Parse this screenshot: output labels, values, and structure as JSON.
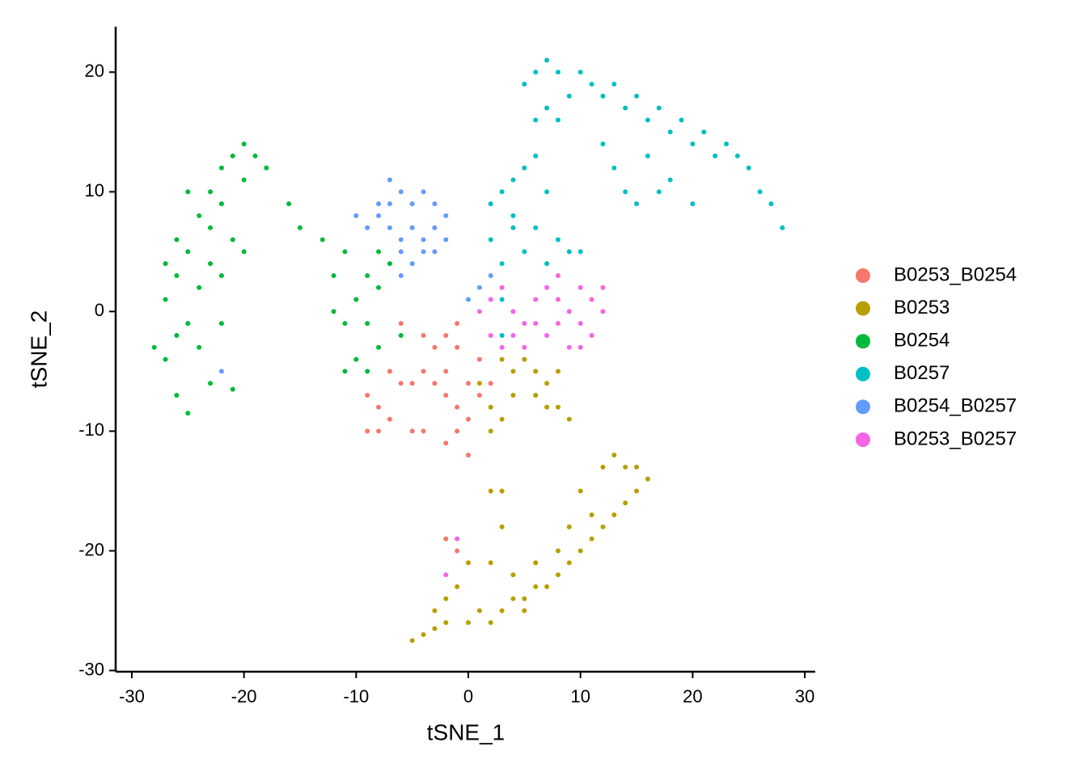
{
  "chart_data": {
    "type": "scatter",
    "x_label": "tSNE_1",
    "y_label": "tSNE_2",
    "xlim": [
      -31.44,
      30.93
    ],
    "ylim": [
      -30.1,
      23.8
    ],
    "xticks": [
      -30,
      -20,
      -10,
      0,
      10,
      20,
      30
    ],
    "yticks": [
      -30,
      -20,
      -10,
      0,
      10,
      20
    ],
    "grid": false,
    "legend": "right",
    "series": [
      {
        "name": "B0253_B0254",
        "color": "#F8766D",
        "x": [
          -9,
          -8,
          -9,
          -8,
          -7,
          -6,
          -7,
          -5,
          -4,
          -5,
          -4,
          -3,
          -2,
          -1,
          -2,
          -3,
          -2,
          -1,
          0,
          1,
          1,
          2,
          0,
          -1,
          -2,
          0,
          -6,
          -4,
          -1,
          -2,
          -1
        ],
        "values": [
          -7,
          -8,
          -10,
          -10,
          -9,
          -6,
          -5,
          -6,
          -5,
          -10,
          -10,
          -3,
          -2,
          -3,
          -5,
          -6,
          -7,
          -8,
          -6,
          -4,
          -7,
          -6,
          -9,
          -10,
          -11,
          -12,
          -1,
          -2,
          -1,
          -19,
          -20
        ]
      },
      {
        "name": "B0253",
        "color": "#B79F00",
        "x": [
          -5,
          -4,
          -3,
          -2,
          0,
          1,
          2,
          3,
          4,
          5,
          6,
          7,
          8,
          9,
          10,
          11,
          12,
          13,
          14,
          15,
          16,
          15,
          14,
          13,
          12,
          10,
          11,
          9,
          8,
          6,
          4,
          2,
          0,
          -1,
          -2,
          3,
          3,
          2,
          5,
          -3,
          1,
          2,
          3,
          2,
          4,
          5,
          6,
          7,
          8,
          8,
          9,
          7,
          6,
          4,
          3
        ],
        "values": [
          -27.5,
          -27,
          -26.5,
          -26,
          -26,
          -25,
          -26,
          -25,
          -24,
          -24,
          -23,
          -23,
          -22,
          -21,
          -20,
          -19,
          -18,
          -17,
          -16,
          -15,
          -14,
          -13,
          -13,
          -12,
          -13,
          -15,
          -17,
          -18,
          -20,
          -21,
          -22,
          -21,
          -21,
          -23,
          -24,
          -18,
          -15,
          -15,
          -25,
          -25,
          -6,
          -8,
          -9,
          -10,
          -7,
          -4,
          -5,
          -6,
          -5,
          -8,
          -9,
          -8,
          -7,
          -5,
          -4
        ]
      },
      {
        "name": "B0254",
        "color": "#00BA38",
        "x": [
          -27,
          -26,
          -25,
          -26,
          -27,
          -26,
          -25,
          -26,
          -24,
          -23,
          -22,
          -21,
          -20,
          -19,
          -18,
          -20,
          -22,
          -21,
          -23,
          -24,
          -22,
          -24,
          -23,
          -21,
          -25,
          -28,
          -27,
          -25,
          -23,
          -20,
          -22,
          -16,
          -15,
          -13,
          -11,
          -12,
          -10,
          -11,
          -9,
          -8,
          -7,
          -8,
          -9,
          -10,
          -9,
          -11,
          -8,
          -6,
          -12
        ],
        "values": [
          -4,
          -7,
          -8.5,
          -2,
          1,
          3,
          5,
          6,
          8,
          10,
          12,
          13,
          14,
          13,
          12,
          11,
          9,
          6,
          4,
          2,
          -1,
          -3,
          -6,
          -6.5,
          -1,
          -3,
          4,
          10,
          7,
          5,
          3,
          9,
          7,
          6,
          5,
          3,
          1,
          -1,
          -1,
          2,
          4,
          5,
          3,
          -4,
          -5,
          -5,
          -3,
          -2,
          0
        ]
      },
      {
        "name": "B0257",
        "color": "#00BFC4",
        "x": [
          5,
          6,
          7,
          8,
          10,
          11,
          13,
          15,
          17,
          19,
          21,
          23,
          24,
          25,
          26,
          27,
          28,
          22,
          20,
          18,
          16,
          14,
          12,
          9,
          7,
          6,
          13,
          14,
          15,
          17,
          18,
          20,
          16,
          12,
          8,
          6,
          4,
          3,
          2,
          5,
          7,
          6,
          8,
          5,
          3,
          2,
          4,
          9,
          7,
          10,
          3,
          3,
          4
        ],
        "values": [
          19,
          20,
          21,
          20,
          20,
          19,
          19,
          18,
          17,
          16,
          15,
          14,
          13,
          12,
          10,
          9,
          7,
          13,
          14,
          15,
          16,
          17,
          18,
          18,
          17,
          16,
          12,
          10,
          9,
          10,
          11,
          9,
          13,
          14,
          16,
          13,
          11,
          10,
          9,
          12,
          10,
          7,
          6,
          5,
          4,
          6,
          8,
          5,
          4,
          5,
          1,
          -2,
          7
        ]
      },
      {
        "name": "B0254_B0257",
        "color": "#619CFF",
        "x": [
          -10,
          -8,
          -7,
          -6,
          -5,
          -4,
          -3,
          -2,
          -3,
          -4,
          -5,
          -6,
          -7,
          -8,
          -6,
          -5,
          -6,
          -4,
          -3,
          -7,
          -9,
          -2,
          0,
          1,
          2,
          -22
        ],
        "values": [
          8,
          9,
          11,
          10,
          9,
          10,
          9,
          8,
          7,
          6,
          7,
          6,
          7,
          8,
          5,
          4,
          3,
          5,
          5,
          9,
          7,
          6,
          1,
          2,
          3,
          -5
        ]
      },
      {
        "name": "B0253_B0257",
        "color": "#F564E3",
        "x": [
          1,
          2,
          3,
          4,
          5,
          6,
          7,
          8,
          9,
          10,
          11,
          12,
          11,
          9,
          7,
          6,
          8,
          10,
          12,
          5,
          4,
          3,
          2,
          8,
          10,
          -1,
          -2
        ],
        "values": [
          0,
          1,
          2,
          0,
          -1,
          1,
          2,
          1,
          0,
          -1,
          1,
          2,
          -2,
          -3,
          -2,
          -1,
          -1,
          2,
          0,
          -3,
          -2,
          -3,
          -2,
          3,
          -3,
          -19,
          -22
        ]
      }
    ]
  }
}
